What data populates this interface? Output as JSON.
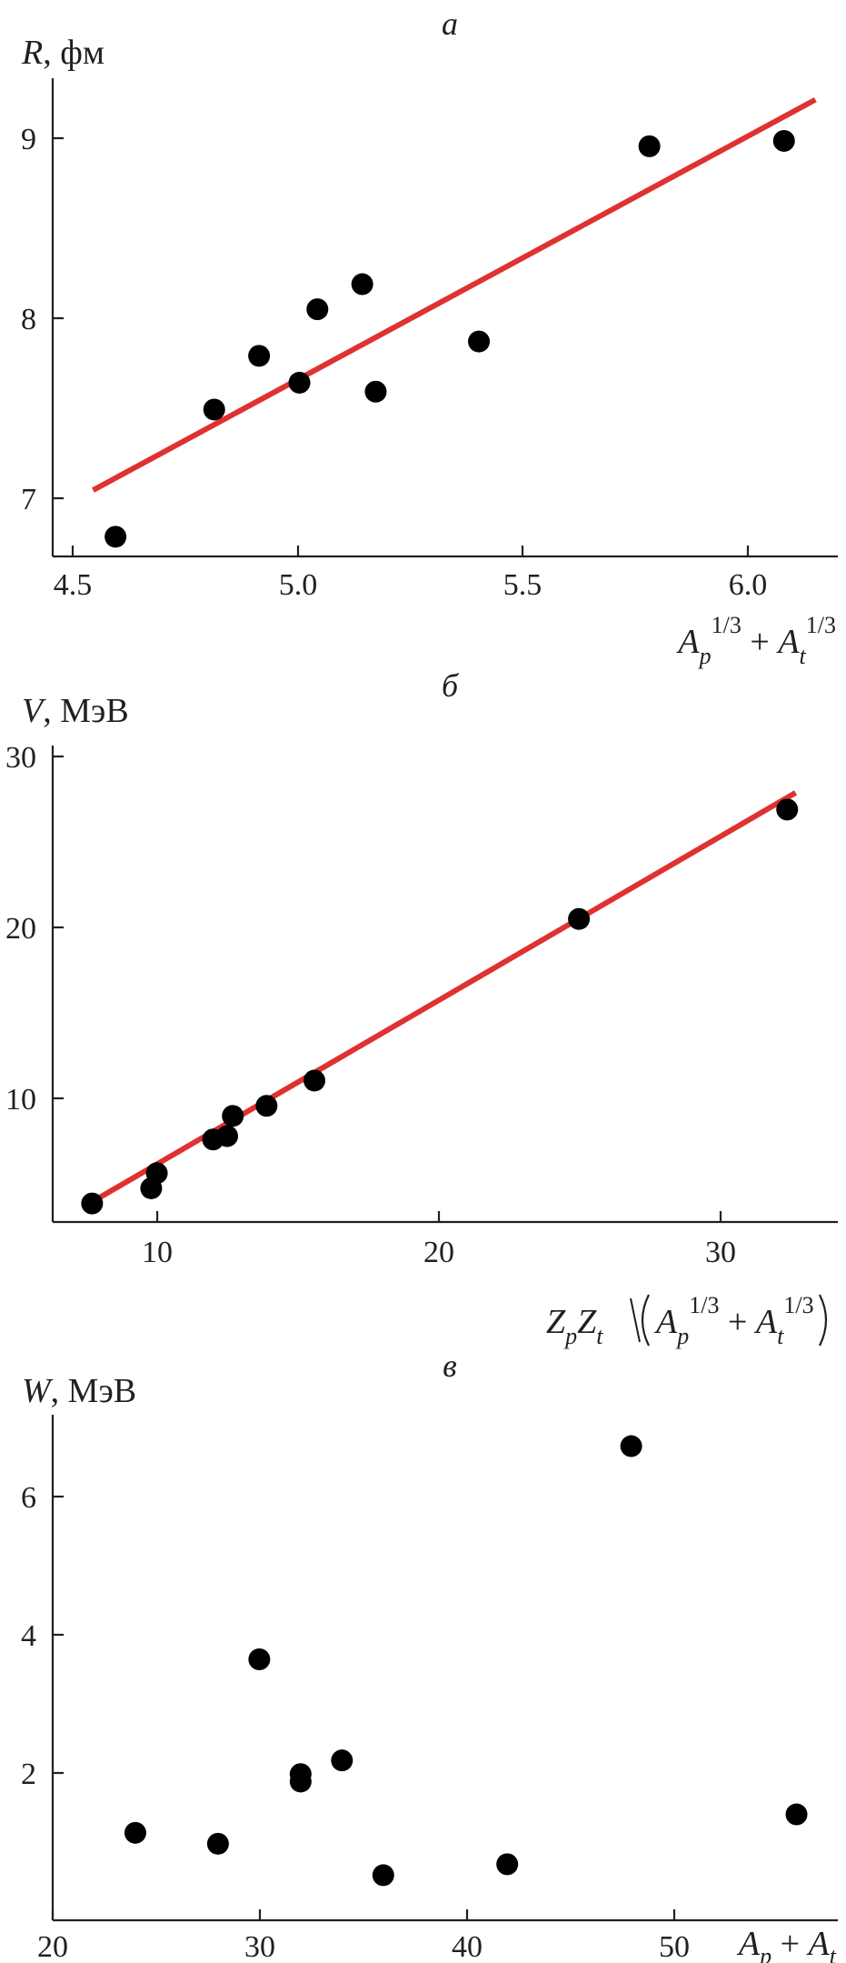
{
  "chart_data": [
    {
      "type": "scatter",
      "panel_label": "а",
      "ylabel_var": "R",
      "ylabel_unit": ", фм",
      "xlabel": "A_p^{1/3} + A_t^{1/3}",
      "xlim": [
        4.45,
        6.2
      ],
      "ylim": [
        6.68,
        9.35
      ],
      "xticks": [
        4.5,
        5.0,
        5.5,
        6.0
      ],
      "xtick_labels": [
        "4.5",
        "5.0",
        "5.5",
        "6.0"
      ],
      "yticks": [
        7,
        8,
        9
      ],
      "ytick_labels": [
        "7",
        "8",
        "9"
      ],
      "grid": false,
      "points": [
        [
          4.59,
          6.79
        ],
        [
          4.81,
          7.5
        ],
        [
          4.91,
          7.8
        ],
        [
          5.0,
          7.65
        ],
        [
          5.04,
          8.06
        ],
        [
          5.14,
          8.2
        ],
        [
          5.17,
          7.6
        ],
        [
          5.4,
          7.88
        ],
        [
          5.78,
          8.97
        ],
        [
          6.08,
          9.0
        ]
      ],
      "fit_line": [
        [
          4.54,
          7.05
        ],
        [
          6.15,
          9.23
        ]
      ],
      "point_color": "#000000",
      "line_color": "#e03131"
    },
    {
      "type": "scatter",
      "panel_label": "б",
      "ylabel_var": "V",
      "ylabel_unit": ", МэВ",
      "xlabel": "Z_p Z_t / (A_p^{1/3} + A_t^{1/3})",
      "xlim": [
        6.3,
        34.2
      ],
      "ylim": [
        2.9,
        31.2
      ],
      "xticks": [
        10,
        20,
        30
      ],
      "xtick_labels": [
        "10",
        "20",
        "30"
      ],
      "yticks": [
        10,
        20,
        30
      ],
      "ytick_labels": [
        "10",
        "20",
        "30"
      ],
      "grid": false,
      "points": [
        [
          7.7,
          4.0
        ],
        [
          9.8,
          4.9
        ],
        [
          10.0,
          5.8
        ],
        [
          12.0,
          7.8
        ],
        [
          12.5,
          8.0
        ],
        [
          12.7,
          9.2
        ],
        [
          13.9,
          9.8
        ],
        [
          15.6,
          11.3
        ],
        [
          25.0,
          20.9
        ],
        [
          32.4,
          27.4
        ]
      ],
      "fit_line": [
        [
          7.5,
          3.9
        ],
        [
          32.7,
          28.4
        ]
      ],
      "point_color": "#000000",
      "line_color": "#e03131"
    },
    {
      "type": "scatter",
      "panel_label": "в",
      "ylabel_var": "W",
      "ylabel_unit": ", МэВ",
      "xlabel": "A_p + A_t",
      "xlim": [
        20,
        58
      ],
      "ylim": [
        -0.1,
        7.3
      ],
      "xticks": [
        20,
        30,
        40,
        50
      ],
      "xtick_labels": [
        "20",
        "30",
        "40",
        "50"
      ],
      "yticks": [
        2,
        4,
        6
      ],
      "ytick_labels": [
        "2",
        "4",
        "6"
      ],
      "grid": false,
      "points": [
        [
          24,
          1.18
        ],
        [
          28,
          1.02
        ],
        [
          30,
          3.72
        ],
        [
          32,
          2.04
        ],
        [
          32,
          1.93
        ],
        [
          34,
          2.24
        ],
        [
          36,
          0.56
        ],
        [
          42,
          0.72
        ],
        [
          48,
          6.84
        ],
        [
          56,
          1.45
        ]
      ],
      "point_color": "#000000"
    }
  ]
}
